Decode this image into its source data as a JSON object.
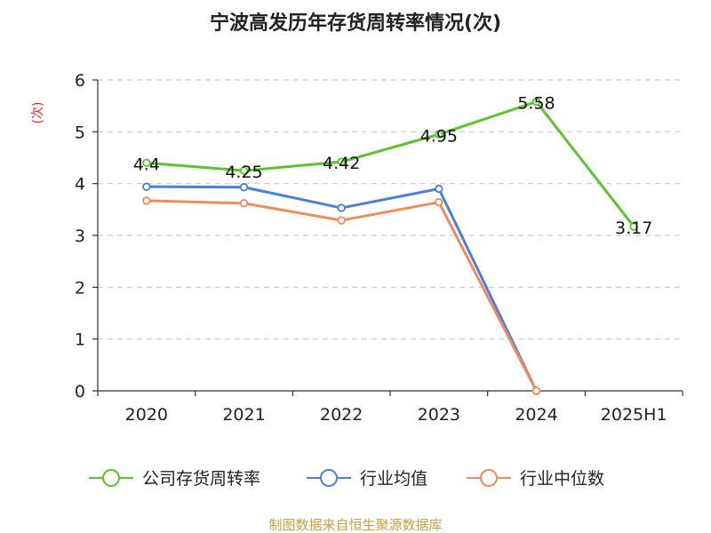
{
  "title": "宁波高发历年存货周转率情况(次)",
  "unit_label": "(次)",
  "source": "制图数据来自恒生聚源数据库",
  "colors": {
    "company": "#5cc52b",
    "industry_avg": "#4a7fdc",
    "industry_median": "#f08b5b",
    "grid": "#cccccc",
    "axis": "#333333"
  },
  "chart_data": {
    "type": "line",
    "categories": [
      "2020",
      "2021",
      "2022",
      "2023",
      "2024",
      "2025H1"
    ],
    "ylim": [
      0,
      6
    ],
    "yticks": [
      "0",
      "1",
      "2",
      "3",
      "4",
      "5",
      "6"
    ],
    "grid": true,
    "legend_position": "bottom",
    "series": [
      {
        "name": "公司存货周转率",
        "color": "#5cc52b",
        "values": [
          4.4,
          4.25,
          4.42,
          4.95,
          5.58,
          3.17
        ],
        "labels": [
          "4.4",
          "4.25",
          "4.42",
          "4.95",
          "5.58",
          "3.17"
        ]
      },
      {
        "name": "行业均值",
        "color": "#4a7fdc",
        "values": [
          3.94,
          3.93,
          3.53,
          3.9,
          0,
          null
        ]
      },
      {
        "name": "行业中位数",
        "color": "#f08b5b",
        "values": [
          3.67,
          3.62,
          3.29,
          3.64,
          0,
          null
        ]
      }
    ]
  }
}
